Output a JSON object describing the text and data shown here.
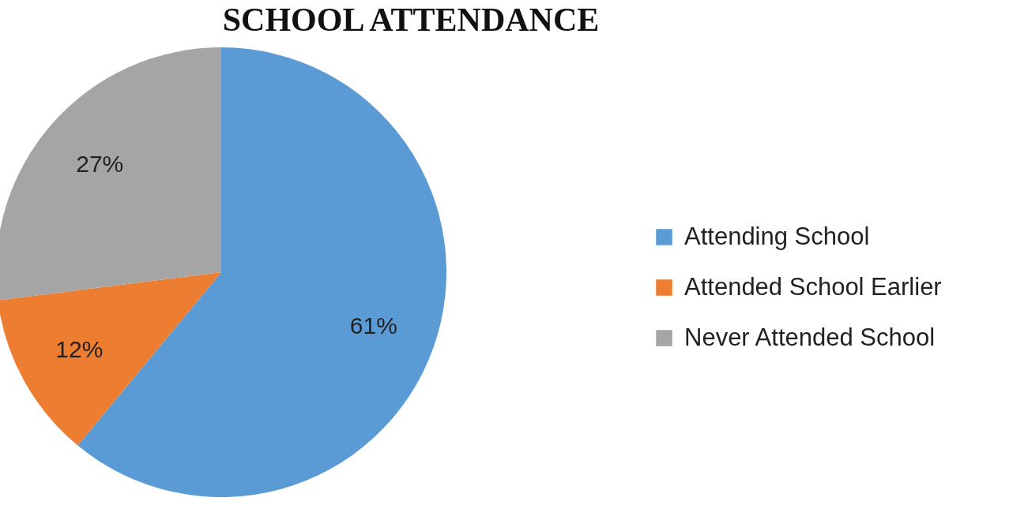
{
  "chart_data": {
    "type": "pie",
    "title": "SCHOOL ATTENDANCE",
    "categories": [
      "Attending School",
      "Attended School Earlier",
      "Never Attended School"
    ],
    "values": [
      61,
      12,
      27
    ],
    "colors": [
      "#5b9bd5",
      "#ed7d31",
      "#a5a5a5"
    ],
    "value_labels": [
      "61%",
      "12%",
      "27%"
    ],
    "legend": "right"
  }
}
